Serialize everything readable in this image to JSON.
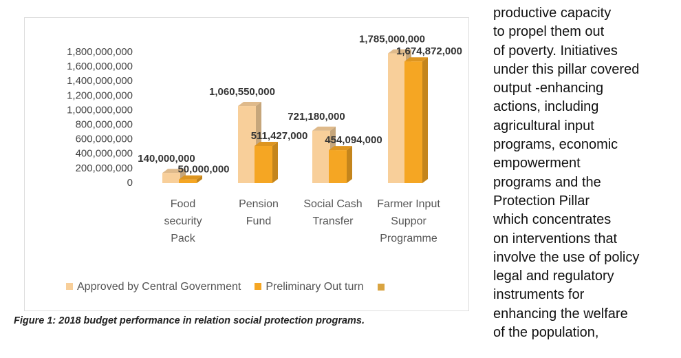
{
  "chart_data": {
    "type": "bar",
    "categories": [
      "Food security Pack",
      "Pension Fund",
      "Social Cash Transfer",
      "Farmer Input Suppor Programme"
    ],
    "series": [
      {
        "name": "Approved by Central Government",
        "color": "#f8cf9a",
        "values": [
          140000000,
          1060550000,
          721180000,
          1785000000
        ],
        "value_labels": [
          "140,000,000",
          "1,060,550,000",
          "721,180,000",
          "1,785,000,000"
        ]
      },
      {
        "name": "Preliminary Out turn",
        "color": "#f5a623",
        "values": [
          50000000,
          511427000,
          454094000,
          1674872000
        ],
        "value_labels": [
          "50,000,000",
          "511,427,000",
          "454,094,000",
          "1,674,872,000"
        ]
      }
    ],
    "ylim": [
      0,
      1800000000
    ],
    "yticks": [
      0,
      {
        "value": 200000000,
        "label": "200,000,000"
      },
      {
        "value": 400000000,
        "label": "400,000,000"
      },
      {
        "value": 600000000,
        "label": "600,000,000"
      },
      {
        "value": 800000000,
        "label": "800,000,000"
      },
      {
        "value": 1000000000,
        "label": "1,000,000,000"
      },
      {
        "value": 1200000000,
        "label": "1,200,000,000"
      },
      {
        "value": 1400000000,
        "label": "1,400,000,000"
      },
      {
        "value": 1600000000,
        "label": "1,600,000,000"
      },
      {
        "value": 1800000000,
        "label": "1,800,000,000"
      }
    ],
    "legend": "bottom"
  },
  "caption": "Figure 1: 2018 budget performance in relation social protection programs.",
  "body_lines": [
    "productive capacity",
    "to propel them out",
    "of poverty. Initiatives",
    "under this pillar covered",
    "output -enhancing",
    "actions, including",
    "agricultural input",
    "programs, economic",
    "empowerment",
    "programs and the",
    "Protection Pillar",
    "which concentrates",
    "on interventions that",
    "involve the use of policy",
    "legal and regulatory",
    "instruments for",
    "enhancing the welfare",
    "of the population,"
  ]
}
